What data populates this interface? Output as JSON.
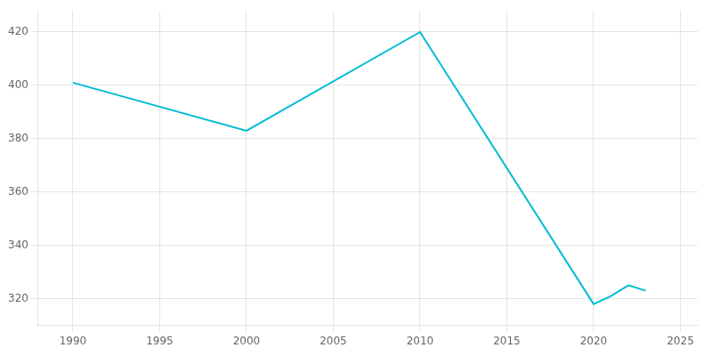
{
  "chart_data": {
    "type": "line",
    "x": [
      1990,
      2000,
      2010,
      2020,
      2021,
      2022,
      2023
    ],
    "values": [
      401,
      383,
      420,
      318,
      321,
      325,
      323
    ],
    "color": "#00BCD4",
    "xlim": [
      1988,
      2026
    ],
    "ylim": [
      310,
      428
    ],
    "xticks": [
      1990,
      1995,
      2000,
      2005,
      2010,
      2015,
      2020,
      2025
    ],
    "yticks": [
      320,
      340,
      360,
      380,
      400,
      420
    ],
    "grid": true
  }
}
